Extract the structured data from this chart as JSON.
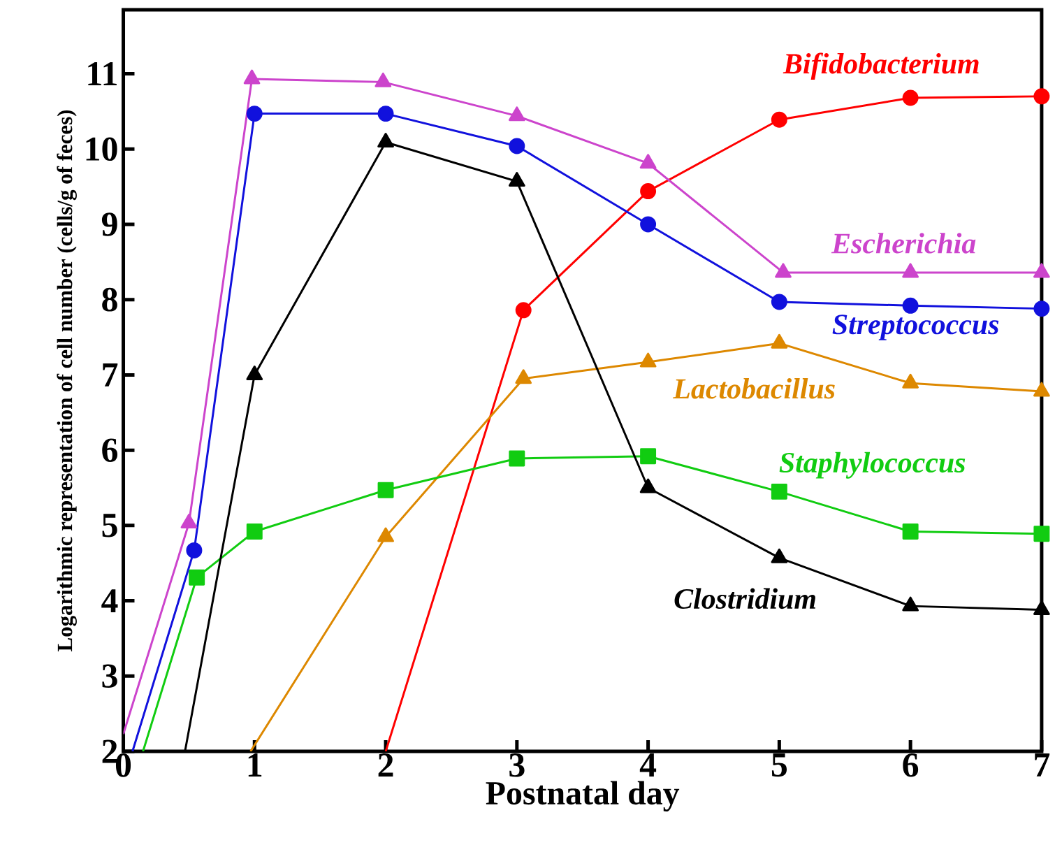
{
  "chart_data": {
    "type": "line",
    "xlabel": "Postnatal day",
    "ylabel": "Logarithmic representation of cell number (cells/g of feces)",
    "xlim": [
      0,
      7
    ],
    "ylim": [
      2,
      11.85
    ],
    "xticks": [
      0,
      1,
      2,
      3,
      4,
      5,
      6,
      7
    ],
    "yticks": [
      2,
      3,
      4,
      5,
      6,
      7,
      8,
      9,
      10,
      11
    ],
    "grid": false,
    "legend": false,
    "line_style": "solid",
    "series": [
      {
        "name": "*Bifidobacterium*",
        "color": "#ff0000",
        "marker": "circle",
        "x": [
          2.0,
          3.05,
          4.0,
          5.0,
          6.0,
          7.0
        ],
        "values": [
          2,
          7.86,
          9.44,
          10.39,
          10.68,
          10.7
        ]
      },
      {
        "name": "*Escherichia*",
        "color": "#cc44cc",
        "marker": "triangle",
        "x": [
          0,
          0.5,
          0.98,
          1.98,
          3.0,
          4.0,
          5.03,
          6.0,
          7.0
        ],
        "values": [
          2.23,
          5.03,
          10.93,
          10.89,
          10.44,
          9.81,
          8.36,
          8.36,
          8.36
        ]
      },
      {
        "name": "*Streptococcus*",
        "color": "#1111dd",
        "marker": "circle",
        "x": [
          0.07,
          0.54,
          1.0,
          2.0,
          3.0,
          4.0,
          5.0,
          6.0,
          7.0
        ],
        "values": [
          2,
          4.67,
          10.47,
          10.47,
          10.04,
          9.0,
          7.97,
          7.92,
          7.88
        ]
      },
      {
        "name": "*Lactobacillus*",
        "color": "#dd8800",
        "marker": "triangle",
        "x": [
          0.97,
          2.0,
          3.05,
          4.0,
          5.0,
          6.0,
          7.0
        ],
        "values": [
          2,
          4.85,
          6.95,
          7.17,
          7.42,
          6.89,
          6.78
        ]
      },
      {
        "name": "*Staphylococcus*",
        "color": "#11cc11",
        "marker": "square",
        "x": [
          0.15,
          0.56,
          1.0,
          2.0,
          3.0,
          4.0,
          5.0,
          6.0,
          7.0
        ],
        "values": [
          2,
          4.31,
          4.92,
          5.47,
          5.89,
          5.92,
          5.45,
          4.92,
          4.89
        ]
      },
      {
        "name": "*Clostridium*",
        "color": "#000000",
        "marker": "triangle",
        "x": [
          0.47,
          1.0,
          2.0,
          3.0,
          4.0,
          5.0,
          6.0,
          7.0
        ],
        "values": [
          2,
          7.0,
          10.09,
          9.57,
          5.5,
          4.57,
          3.93,
          3.88
        ]
      }
    ]
  }
}
